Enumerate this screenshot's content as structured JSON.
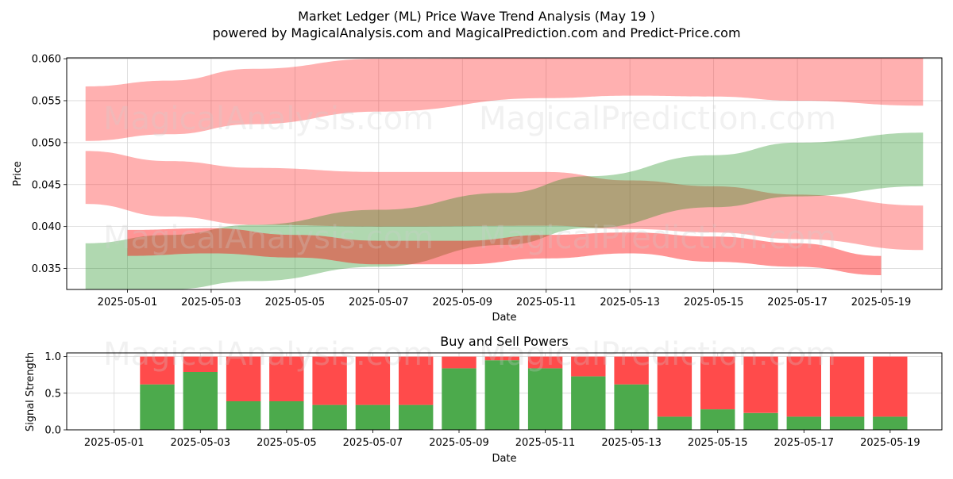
{
  "header": {
    "title": "Market Ledger (ML) Price Wave Trend Analysis (May 19 )",
    "subtitle": "powered by MagicalAnalysis.com and MagicalPrediction.com and Predict-Price.com"
  },
  "watermarks": [
    "MagicalAnalysis.com",
    "MagicalPrediction.com"
  ],
  "chart_data": [
    {
      "type": "area",
      "title": "",
      "xlabel": "Date",
      "ylabel": "Price",
      "ylim": [
        0.0325,
        0.0601
      ],
      "xlim": [
        "2025-04-30",
        "2025-05-20"
      ],
      "yticks": [
        "0.035",
        "0.040",
        "0.045",
        "0.050",
        "0.055",
        "0.060"
      ],
      "xticks": [
        "2025-05-01",
        "2025-05-03",
        "2025-05-05",
        "2025-05-07",
        "2025-05-09",
        "2025-05-11",
        "2025-05-13",
        "2025-05-15",
        "2025-05-17",
        "2025-05-19"
      ],
      "grid": true,
      "colors": {
        "red_band": "#ff0000",
        "green_band": "#008000"
      },
      "bands": [
        {
          "color": "red",
          "x": [
            "2025-04-30",
            "2025-05-02",
            "2025-05-04",
            "2025-05-07",
            "2025-05-11",
            "2025-05-13",
            "2025-05-15",
            "2025-05-17",
            "2025-05-20"
          ],
          "lower": [
            0.0502,
            0.051,
            0.0522,
            0.0537,
            0.0553,
            0.0556,
            0.0555,
            0.055,
            0.0544
          ],
          "upper": [
            0.0567,
            0.0574,
            0.0588,
            0.06,
            0.0601,
            0.0601,
            0.0601,
            0.0601,
            0.0601
          ]
        },
        {
          "color": "red",
          "x": [
            "2025-04-30",
            "2025-05-02",
            "2025-05-04",
            "2025-05-07",
            "2025-05-11",
            "2025-05-13",
            "2025-05-15",
            "2025-05-17",
            "2025-05-20"
          ],
          "lower": [
            0.0427,
            0.0412,
            0.0402,
            0.04,
            0.0401,
            0.0397,
            0.0393,
            0.0385,
            0.0372
          ],
          "upper": [
            0.049,
            0.0478,
            0.047,
            0.0465,
            0.0465,
            0.0455,
            0.0448,
            0.0438,
            0.0425
          ]
        },
        {
          "color": "green",
          "x": [
            "2025-04-30",
            "2025-05-02",
            "2025-05-04",
            "2025-05-07",
            "2025-05-10",
            "2025-05-12",
            "2025-05-15",
            "2025-05-17",
            "2025-05-20"
          ],
          "lower": [
            0.032,
            0.0325,
            0.0335,
            0.0352,
            0.0378,
            0.0398,
            0.0423,
            0.0436,
            0.0448
          ],
          "upper": [
            0.038,
            0.039,
            0.0402,
            0.042,
            0.044,
            0.046,
            0.0485,
            0.05,
            0.0512
          ]
        },
        {
          "color": "red",
          "x": [
            "2025-05-01",
            "2025-05-03",
            "2025-05-05",
            "2025-05-07",
            "2025-05-09",
            "2025-05-11",
            "2025-05-13",
            "2025-05-15",
            "2025-05-17",
            "2025-05-19"
          ],
          "lower": [
            0.0365,
            0.0368,
            0.0363,
            0.0355,
            0.0355,
            0.0362,
            0.0368,
            0.0358,
            0.0352,
            0.0342
          ],
          "upper": [
            0.0396,
            0.0398,
            0.039,
            0.0383,
            0.0383,
            0.039,
            0.0393,
            0.0388,
            0.038,
            0.0365
          ]
        }
      ]
    },
    {
      "type": "bar",
      "title": "Buy and Sell Powers",
      "xlabel": "Date",
      "ylabel": "Signal Strength",
      "ylim": [
        0,
        1.05
      ],
      "yticks": [
        "0.0",
        "0.5",
        "1.0"
      ],
      "xticks": [
        "2025-05-01",
        "2025-05-03",
        "2025-05-05",
        "2025-05-07",
        "2025-05-09",
        "2025-05-11",
        "2025-05-13",
        "2025-05-15",
        "2025-05-17",
        "2025-05-19"
      ],
      "grid": true,
      "categories": [
        "2025-05-02",
        "2025-05-03",
        "2025-05-04",
        "2025-05-05",
        "2025-05-06",
        "2025-05-07",
        "2025-05-08",
        "2025-05-09",
        "2025-05-10",
        "2025-05-11",
        "2025-05-12",
        "2025-05-13",
        "2025-05-14",
        "2025-05-15",
        "2025-05-16",
        "2025-05-17",
        "2025-05-18",
        "2025-05-19"
      ],
      "series": [
        {
          "color": "#4caa4c",
          "values": [
            0.62,
            0.79,
            0.39,
            0.39,
            0.34,
            0.34,
            0.34,
            0.84,
            0.95,
            0.84,
            0.73,
            0.62,
            0.18,
            0.28,
            0.23,
            0.18,
            0.18,
            0.18
          ]
        },
        {
          "color": "#ff4b4b",
          "values": [
            0.38,
            0.21,
            0.61,
            0.61,
            0.66,
            0.66,
            0.66,
            0.16,
            0.05,
            0.16,
            0.27,
            0.38,
            0.82,
            0.72,
            0.77,
            0.82,
            0.82,
            0.82
          ]
        }
      ]
    }
  ]
}
